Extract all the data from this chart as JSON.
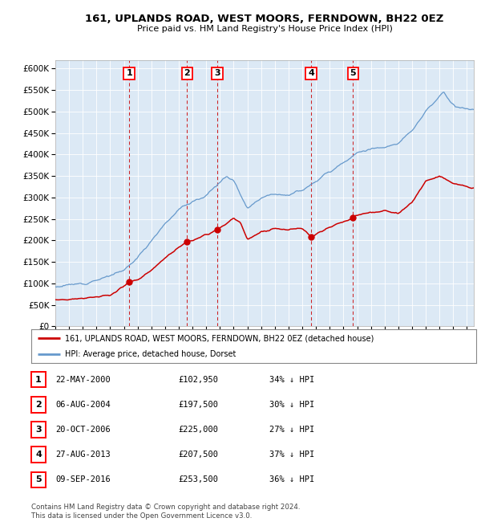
{
  "title": "161, UPLANDS ROAD, WEST MOORS, FERNDOWN, BH22 0EZ",
  "subtitle": "Price paid vs. HM Land Registry's House Price Index (HPI)",
  "background_color": "#dce9f5",
  "plot_bg_color": "#dce9f5",
  "hpi_line_color": "#6699cc",
  "price_line_color": "#cc0000",
  "marker_color": "#cc0000",
  "vline_color": "#cc0000",
  "ylim": [
    0,
    620000
  ],
  "ytick_step": 50000,
  "legend_label_price": "161, UPLANDS ROAD, WEST MOORS, FERNDOWN, BH22 0EZ (detached house)",
  "legend_label_hpi": "HPI: Average price, detached house, Dorset",
  "transactions": [
    {
      "num": 1,
      "date": "22-MAY-2000",
      "date_x": 2000.38,
      "price": 102950,
      "pct": "34% ↓ HPI"
    },
    {
      "num": 2,
      "date": "06-AUG-2004",
      "date_x": 2004.6,
      "price": 197500,
      "pct": "30% ↓ HPI"
    },
    {
      "num": 3,
      "date": "20-OCT-2006",
      "date_x": 2006.8,
      "price": 225000,
      "pct": "27% ↓ HPI"
    },
    {
      "num": 4,
      "date": "27-AUG-2013",
      "date_x": 2013.65,
      "price": 207500,
      "pct": "37% ↓ HPI"
    },
    {
      "num": 5,
      "date": "09-SEP-2016",
      "date_x": 2016.69,
      "price": 253500,
      "pct": "36% ↓ HPI"
    }
  ],
  "footer": "Contains HM Land Registry data © Crown copyright and database right 2024.\nThis data is licensed under the Open Government Licence v3.0.",
  "xmin": 1995,
  "xmax": 2025.5,
  "hpi_anchors": [
    [
      1995,
      92000
    ],
    [
      1996,
      96000
    ],
    [
      1997,
      100000
    ],
    [
      1998,
      108000
    ],
    [
      1999,
      118000
    ],
    [
      2000,
      130000
    ],
    [
      2001,
      160000
    ],
    [
      2002,
      200000
    ],
    [
      2003,
      240000
    ],
    [
      2004,
      272000
    ],
    [
      2005,
      290000
    ],
    [
      2006,
      305000
    ],
    [
      2007,
      335000
    ],
    [
      2007.5,
      350000
    ],
    [
      2008,
      340000
    ],
    [
      2009,
      275000
    ],
    [
      2010,
      300000
    ],
    [
      2011,
      310000
    ],
    [
      2012,
      305000
    ],
    [
      2013,
      318000
    ],
    [
      2014,
      338000
    ],
    [
      2015,
      360000
    ],
    [
      2016,
      382000
    ],
    [
      2017,
      405000
    ],
    [
      2018,
      412000
    ],
    [
      2019,
      418000
    ],
    [
      2020,
      425000
    ],
    [
      2021,
      455000
    ],
    [
      2022,
      500000
    ],
    [
      2023.3,
      545000
    ],
    [
      2023.8,
      520000
    ],
    [
      2024.2,
      510000
    ],
    [
      2025.3,
      505000
    ]
  ],
  "price_anchors": [
    [
      1995,
      62000
    ],
    [
      1996,
      63000
    ],
    [
      1997,
      65000
    ],
    [
      1998,
      68000
    ],
    [
      1999,
      72000
    ],
    [
      2000.38,
      102950
    ],
    [
      2001,
      108000
    ],
    [
      2002,
      130000
    ],
    [
      2003,
      160000
    ],
    [
      2004.6,
      197500
    ],
    [
      2005.0,
      200000
    ],
    [
      2006.0,
      212000
    ],
    [
      2006.8,
      225000
    ],
    [
      2007.3,
      235000
    ],
    [
      2008.0,
      252000
    ],
    [
      2008.5,
      240000
    ],
    [
      2009.0,
      202000
    ],
    [
      2009.5,
      210000
    ],
    [
      2010,
      220000
    ],
    [
      2011,
      228000
    ],
    [
      2012,
      225000
    ],
    [
      2013.0,
      228000
    ],
    [
      2013.65,
      207500
    ],
    [
      2014.0,
      215000
    ],
    [
      2015,
      232000
    ],
    [
      2016.0,
      243000
    ],
    [
      2016.69,
      253500
    ],
    [
      2017,
      258000
    ],
    [
      2018,
      265000
    ],
    [
      2019,
      268000
    ],
    [
      2020,
      263000
    ],
    [
      2021,
      288000
    ],
    [
      2022,
      338000
    ],
    [
      2023.0,
      350000
    ],
    [
      2023.5,
      342000
    ],
    [
      2024.0,
      332000
    ],
    [
      2025.3,
      322000
    ]
  ]
}
